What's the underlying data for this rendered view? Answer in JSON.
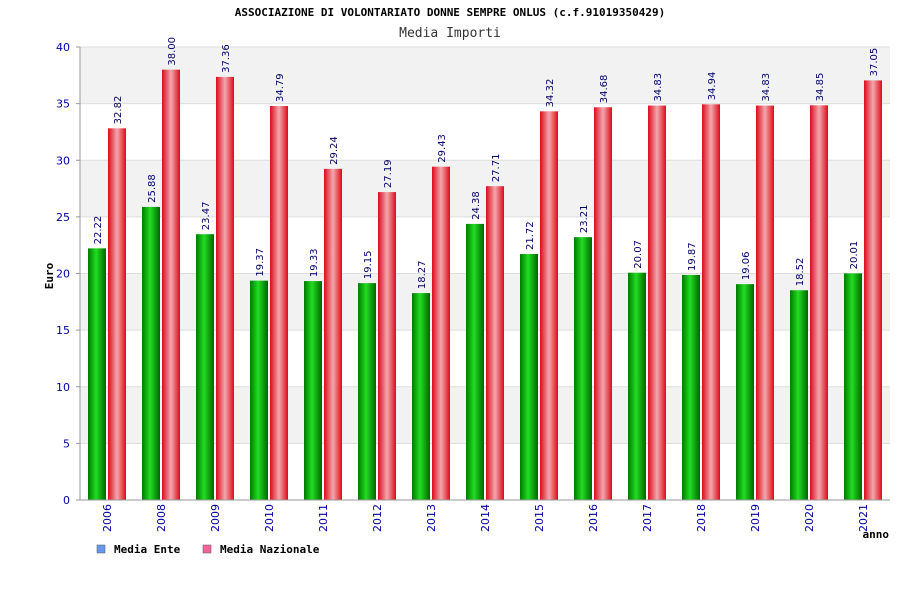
{
  "chart_data": {
    "type": "bar",
    "title": "ASSOCIAZIONE DI VOLONTARIATO DONNE SEMPRE ONLUS (c.f.91019350429)",
    "subtitle": "Media Importi",
    "xlabel": "anno",
    "ylabel": "Euro",
    "ylim": [
      0,
      40
    ],
    "yticks": [
      "0",
      "5",
      "10",
      "15",
      "20",
      "25",
      "30",
      "35",
      "40"
    ],
    "grid": true,
    "legend_position": "bottom-left",
    "categories": [
      "2006",
      "2008",
      "2009",
      "2010",
      "2011",
      "2012",
      "2013",
      "2014",
      "2015",
      "2016",
      "2017",
      "2018",
      "2019",
      "2020",
      "2021"
    ],
    "series": [
      {
        "name": "Media Ente",
        "values": [
          22.22,
          25.88,
          23.47,
          19.37,
          19.33,
          19.15,
          18.27,
          24.38,
          21.72,
          23.21,
          20.07,
          19.87,
          19.06,
          18.52,
          20.01
        ],
        "labels": [
          "22.22",
          "25.88",
          "23.47",
          "19.37",
          "19.33",
          "19.15",
          "18.27",
          "24.38",
          "21.72",
          "23.21",
          "20.07",
          "19.87",
          "19.06",
          "18.52",
          "20.01"
        ],
        "color": "#00aa00",
        "legend_color": "#6699ee"
      },
      {
        "name": "Media Nazionale",
        "values": [
          32.82,
          38.0,
          37.36,
          34.79,
          29.24,
          27.19,
          29.43,
          27.71,
          34.32,
          34.68,
          34.83,
          34.94,
          34.83,
          34.85,
          37.05
        ],
        "labels": [
          "32.82",
          "38.00",
          "37.36",
          "34.79",
          "29.24",
          "27.19",
          "29.43",
          "27.71",
          "34.32",
          "34.68",
          "34.83",
          "34.94",
          "34.83",
          "34.85",
          "37.05"
        ],
        "color": "#ee1111",
        "legend_color": "#ee6699"
      }
    ]
  }
}
